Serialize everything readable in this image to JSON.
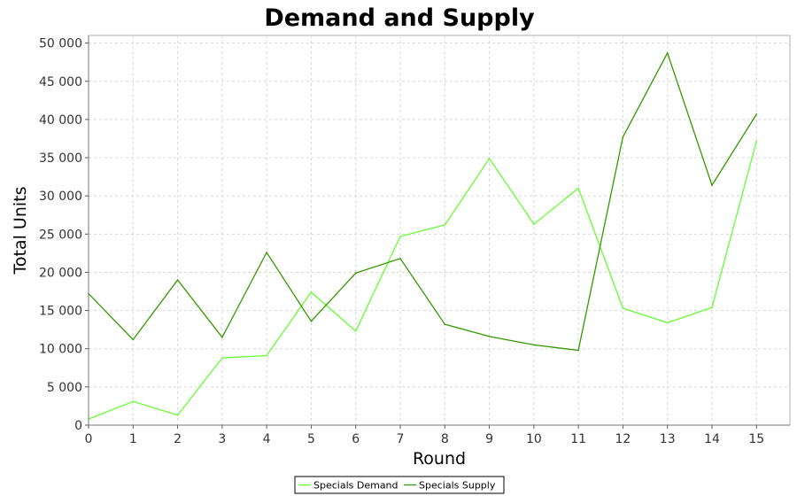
{
  "chart_data": {
    "type": "line",
    "title": "Demand and Supply",
    "xlabel": "Round",
    "ylabel": "Total Units",
    "x": [
      0,
      1,
      2,
      3,
      4,
      5,
      6,
      7,
      8,
      9,
      10,
      11,
      12,
      13,
      14,
      15
    ],
    "xlim": [
      0,
      15.75
    ],
    "ylim": [
      0,
      51000
    ],
    "x_ticks": [
      "0",
      "1",
      "2",
      "3",
      "4",
      "5",
      "6",
      "7",
      "8",
      "9",
      "10",
      "11",
      "12",
      "13",
      "14",
      "15"
    ],
    "y_tick_values": [
      0,
      5000,
      10000,
      15000,
      20000,
      25000,
      30000,
      35000,
      40000,
      45000,
      50000
    ],
    "y_ticks": [
      "0",
      "5 000",
      "10 000",
      "15 000",
      "20 000",
      "25 000",
      "30 000",
      "35 000",
      "40 000",
      "45 000",
      "50 000"
    ],
    "grid": true,
    "legend_position": "bottom",
    "series": [
      {
        "name": "Specials Demand",
        "color": "#66ff33",
        "values": [
          800,
          3100,
          1300,
          8800,
          9100,
          17400,
          12300,
          24700,
          26200,
          34900,
          26300,
          31000,
          15300,
          13400,
          15400,
          37200
        ]
      },
      {
        "name": "Specials Supply",
        "color": "#339900",
        "values": [
          17200,
          11200,
          19000,
          11500,
          22600,
          13600,
          19900,
          21800,
          13200,
          11600,
          10500,
          9800,
          37700,
          48700,
          31400,
          40700
        ]
      }
    ]
  }
}
